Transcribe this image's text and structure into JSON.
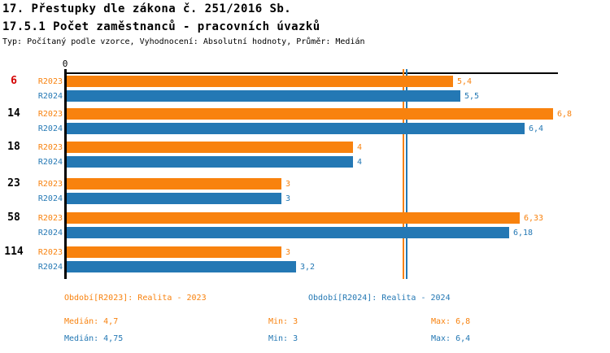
{
  "chart_data": {
    "type": "bar",
    "orientation": "horizontal",
    "title": "17. Přestupky dle zákona č. 251/2016 Sb.",
    "subtitle": "17.5.1 Počet zaměstnanců - pracovních úvazků",
    "meta": "Typ: Počítaný podle vzorce, Vyhodnocení: Absolutní hodnoty, Průměr: Medián",
    "categories": [
      "6",
      "14",
      "18",
      "23",
      "58",
      "114"
    ],
    "highlighted_category": "6",
    "highlight_color": "#d40000",
    "series": [
      {
        "name": "R2023",
        "color": "#f8820e",
        "values": [
          5.4,
          6.8,
          4,
          3,
          6.33,
          3
        ],
        "value_labels": [
          "5,4",
          "6,8",
          "4",
          "3",
          "6,33",
          "3"
        ],
        "median": 4.7,
        "min": 3,
        "max": 6.8
      },
      {
        "name": "R2024",
        "color": "#2478b4",
        "values": [
          5.5,
          6.4,
          4,
          3,
          6.18,
          3.2
        ],
        "value_labels": [
          "5,5",
          "6,4",
          "4",
          "3",
          "6,18",
          "3,2"
        ],
        "median": 4.75,
        "min": 3,
        "max": 6.4
      }
    ],
    "x_axis": {
      "range": [
        0,
        6.9
      ],
      "ticks": [
        {
          "value": 0,
          "label": "0"
        }
      ]
    },
    "reference_lines": [
      {
        "series": "R2023",
        "type": "median",
        "value": 4.7
      },
      {
        "series": "R2024",
        "type": "median",
        "value": 4.75
      }
    ],
    "grid": false,
    "legend_position": "bottom"
  },
  "legend": {
    "r2023": {
      "period": "Období[R2023]: Realita - 2023",
      "median": "Medián: 4,7",
      "min": "Min: 3",
      "max": "Max: 6,8"
    },
    "r2024": {
      "period": "Období[R2024]: Realita - 2024",
      "median": "Medián: 4,75",
      "min": "Min: 3",
      "max": "Max: 6,4"
    }
  }
}
